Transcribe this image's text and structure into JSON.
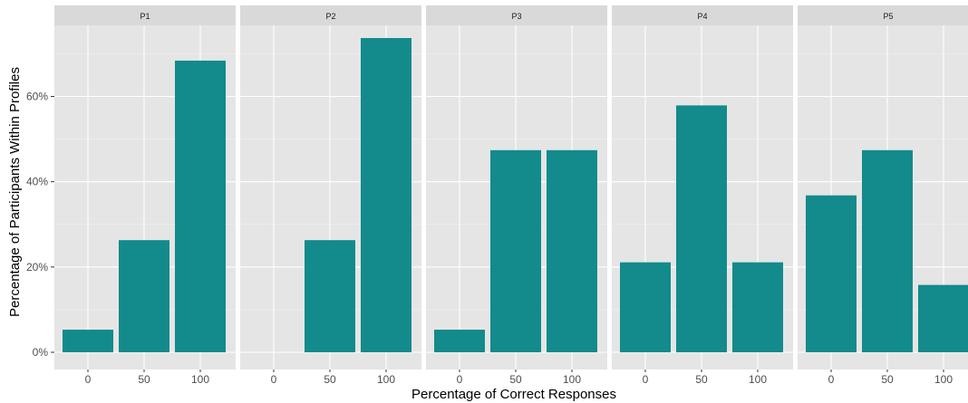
{
  "chart_data": {
    "type": "bar",
    "xlabel": "Percentage of Correct Responses",
    "ylabel": "Percentage of Participants Within Profiles",
    "categories": [
      "0",
      "50",
      "100"
    ],
    "y_ticks": [
      "0%",
      "20%",
      "40%",
      "60%"
    ],
    "y_tick_values": [
      0,
      20,
      40,
      60
    ],
    "ylim": [
      0,
      73.7
    ],
    "grid": true,
    "bar_color": "#138A8C",
    "panel_bg": "#E5E5E5",
    "strip_bg": "#D9D9D9",
    "facets": [
      {
        "label": "P1",
        "values": [
          5.3,
          26.3,
          68.4
        ]
      },
      {
        "label": "P2",
        "values": [
          0,
          26.3,
          73.7
        ]
      },
      {
        "label": "P3",
        "values": [
          5.3,
          47.4,
          47.4
        ]
      },
      {
        "label": "P4",
        "values": [
          21.1,
          57.9,
          21.1
        ]
      },
      {
        "label": "P5",
        "values": [
          36.8,
          47.4,
          15.8
        ]
      }
    ]
  }
}
